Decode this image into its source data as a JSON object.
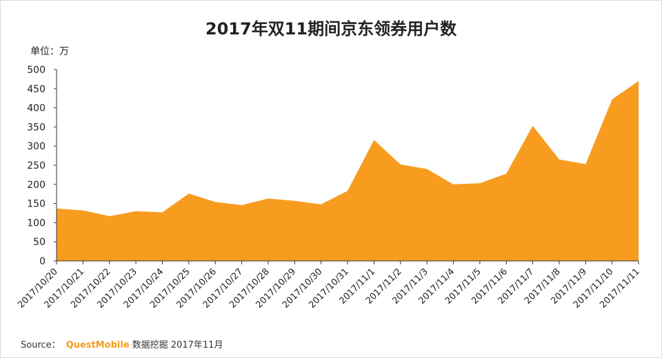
{
  "chart_data": {
    "type": "area",
    "title": "2017年双11期间京东领券用户数",
    "ylabel": "单位：万",
    "xlabel": "",
    "ylim": [
      0,
      500
    ],
    "yticks": [
      0,
      50,
      100,
      150,
      200,
      250,
      300,
      350,
      400,
      450,
      500
    ],
    "categories": [
      "2017/10/20",
      "2017/10/21",
      "2017/10/22",
      "2017/10/23",
      "2017/10/24",
      "2017/10/25",
      "2017/10/26",
      "2017/10/27",
      "2017/10/28",
      "2017/10/29",
      "2017/10/30",
      "2017/10/31",
      "2017/11/1",
      "2017/11/2",
      "2017/11/3",
      "2017/11/4",
      "2017/11/5",
      "2017/11/6",
      "2017/11/7",
      "2017/11/8",
      "2017/11/9",
      "2017/11/10",
      "2017/11/11"
    ],
    "series": [
      {
        "values": [
          137,
          132,
          117,
          130,
          127,
          176,
          154,
          146,
          163,
          157,
          148,
          183,
          316,
          252,
          240,
          200,
          203,
          228,
          353,
          265,
          253,
          422,
          470
        ]
      }
    ],
    "color": "#f79c1f",
    "grid": false,
    "legend": "none"
  },
  "source": {
    "prefix": "Source：",
    "brand": "QuestMobile",
    "suffix": "数据挖掘 2017年11月"
  }
}
